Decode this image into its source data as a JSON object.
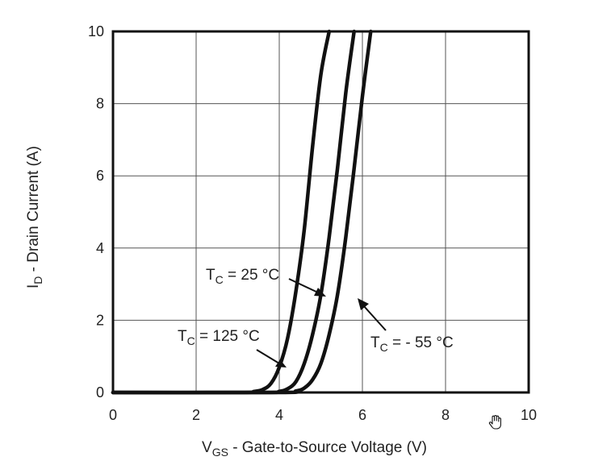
{
  "chart_data": {
    "type": "line",
    "xlabel": {
      "main": "V",
      "sub": "GS",
      "rest": " - Gate-to-Source Voltage (V)"
    },
    "ylabel": {
      "main": "I",
      "sub": "D",
      "rest": " - Drain Current (A)"
    },
    "xlim": [
      0,
      10
    ],
    "ylim": [
      0,
      10
    ],
    "xticks": [
      "0",
      "2",
      "4",
      "6",
      "8",
      "10"
    ],
    "yticks": [
      "0",
      "2",
      "4",
      "6",
      "8",
      "10"
    ],
    "grid": true,
    "series": [
      {
        "name": {
          "main": "T",
          "sub": "C",
          "rest": " = 125 °C"
        },
        "x": [
          0,
          3.0,
          3.4,
          3.6,
          3.8,
          4.0,
          4.2,
          4.4,
          4.6,
          4.8,
          5.0,
          5.2
        ],
        "y": [
          0,
          0.0,
          0.03,
          0.08,
          0.25,
          0.7,
          1.5,
          2.8,
          4.5,
          6.8,
          8.8,
          10
        ]
      },
      {
        "name": {
          "main": "T",
          "sub": "C",
          "rest": " = 25 °C"
        },
        "x": [
          0,
          3.6,
          4.0,
          4.2,
          4.4,
          4.6,
          4.8,
          5.0,
          5.2,
          5.4,
          5.6,
          5.8
        ],
        "y": [
          0,
          0.0,
          0.03,
          0.1,
          0.3,
          0.8,
          1.6,
          2.7,
          4.3,
          6.2,
          8.3,
          10
        ]
      },
      {
        "name": {
          "main": "T",
          "sub": "C",
          "rest": " = - 55 °C"
        },
        "x": [
          0,
          4.0,
          4.4,
          4.6,
          4.8,
          5.0,
          5.2,
          5.4,
          5.6,
          5.8,
          6.0,
          6.2
        ],
        "y": [
          0,
          0.0,
          0.04,
          0.12,
          0.35,
          0.8,
          1.6,
          2.7,
          4.3,
          6.2,
          8.2,
          10
        ]
      }
    ]
  }
}
